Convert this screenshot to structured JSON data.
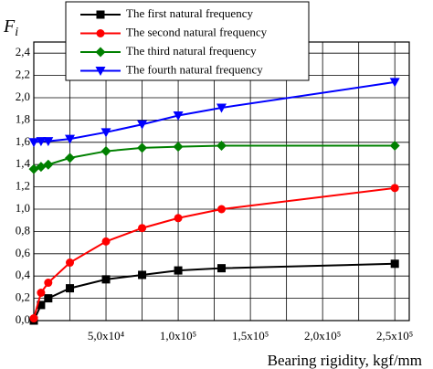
{
  "chart_data": {
    "type": "line",
    "ylabel": "F",
    "ylabel_sub": "i",
    "xlabel": "Bearing rigidity, kgf/mm",
    "x": [
      0,
      5000,
      10000,
      25000,
      50000,
      75000,
      100000,
      130000,
      250000
    ],
    "series": [
      {
        "name": "The first natural frequency",
        "color": "#000000",
        "marker": "square",
        "values": [
          0,
          0.14,
          0.2,
          0.29,
          0.37,
          0.41,
          0.45,
          0.47,
          0.51
        ]
      },
      {
        "name": "The second natural frequency",
        "color": "#ff0000",
        "marker": "circle",
        "values": [
          0.02,
          0.25,
          0.34,
          0.52,
          0.71,
          0.83,
          0.92,
          1.0,
          1.19
        ]
      },
      {
        "name": "The third natural frequency",
        "color": "#008000",
        "marker": "diamond",
        "values": [
          1.36,
          1.38,
          1.4,
          1.46,
          1.52,
          1.55,
          1.56,
          1.57,
          1.57
        ]
      },
      {
        "name": "The fourth natural frequency",
        "color": "#0000ff",
        "marker": "triangle-down",
        "values": [
          1.6,
          1.61,
          1.61,
          1.63,
          1.69,
          1.76,
          1.84,
          1.91,
          2.14
        ]
      }
    ],
    "xlim": [
      0,
      260000
    ],
    "ylim": [
      0,
      2.5
    ],
    "xticks": [
      {
        "value": 50000,
        "label": "5,0x10⁴"
      },
      {
        "value": 100000,
        "label": "1,0x10⁵"
      },
      {
        "value": 150000,
        "label": "1,5x10⁵"
      },
      {
        "value": 200000,
        "label": "2,0x10⁵"
      },
      {
        "value": 250000,
        "label": "2,5x10⁵"
      }
    ],
    "xminor_ticks": [
      25000,
      75000,
      125000,
      175000,
      225000
    ],
    "yticks": [
      {
        "value": 0,
        "label": "0,0"
      },
      {
        "value": 0.2,
        "label": "0,2"
      },
      {
        "value": 0.4,
        "label": "0,4"
      },
      {
        "value": 0.6,
        "label": "0,6"
      },
      {
        "value": 0.8,
        "label": "0,8"
      },
      {
        "value": 1.0,
        "label": "1,0"
      },
      {
        "value": 1.2,
        "label": "1,2"
      },
      {
        "value": 1.4,
        "label": "1,4"
      },
      {
        "value": 1.6,
        "label": "1,6"
      },
      {
        "value": 1.8,
        "label": "1,8"
      },
      {
        "value": 2.0,
        "label": "2,0"
      },
      {
        "value": 2.2,
        "label": "2,2"
      },
      {
        "value": 2.4,
        "label": "2,4"
      }
    ],
    "grid": true,
    "legend": "top"
  }
}
